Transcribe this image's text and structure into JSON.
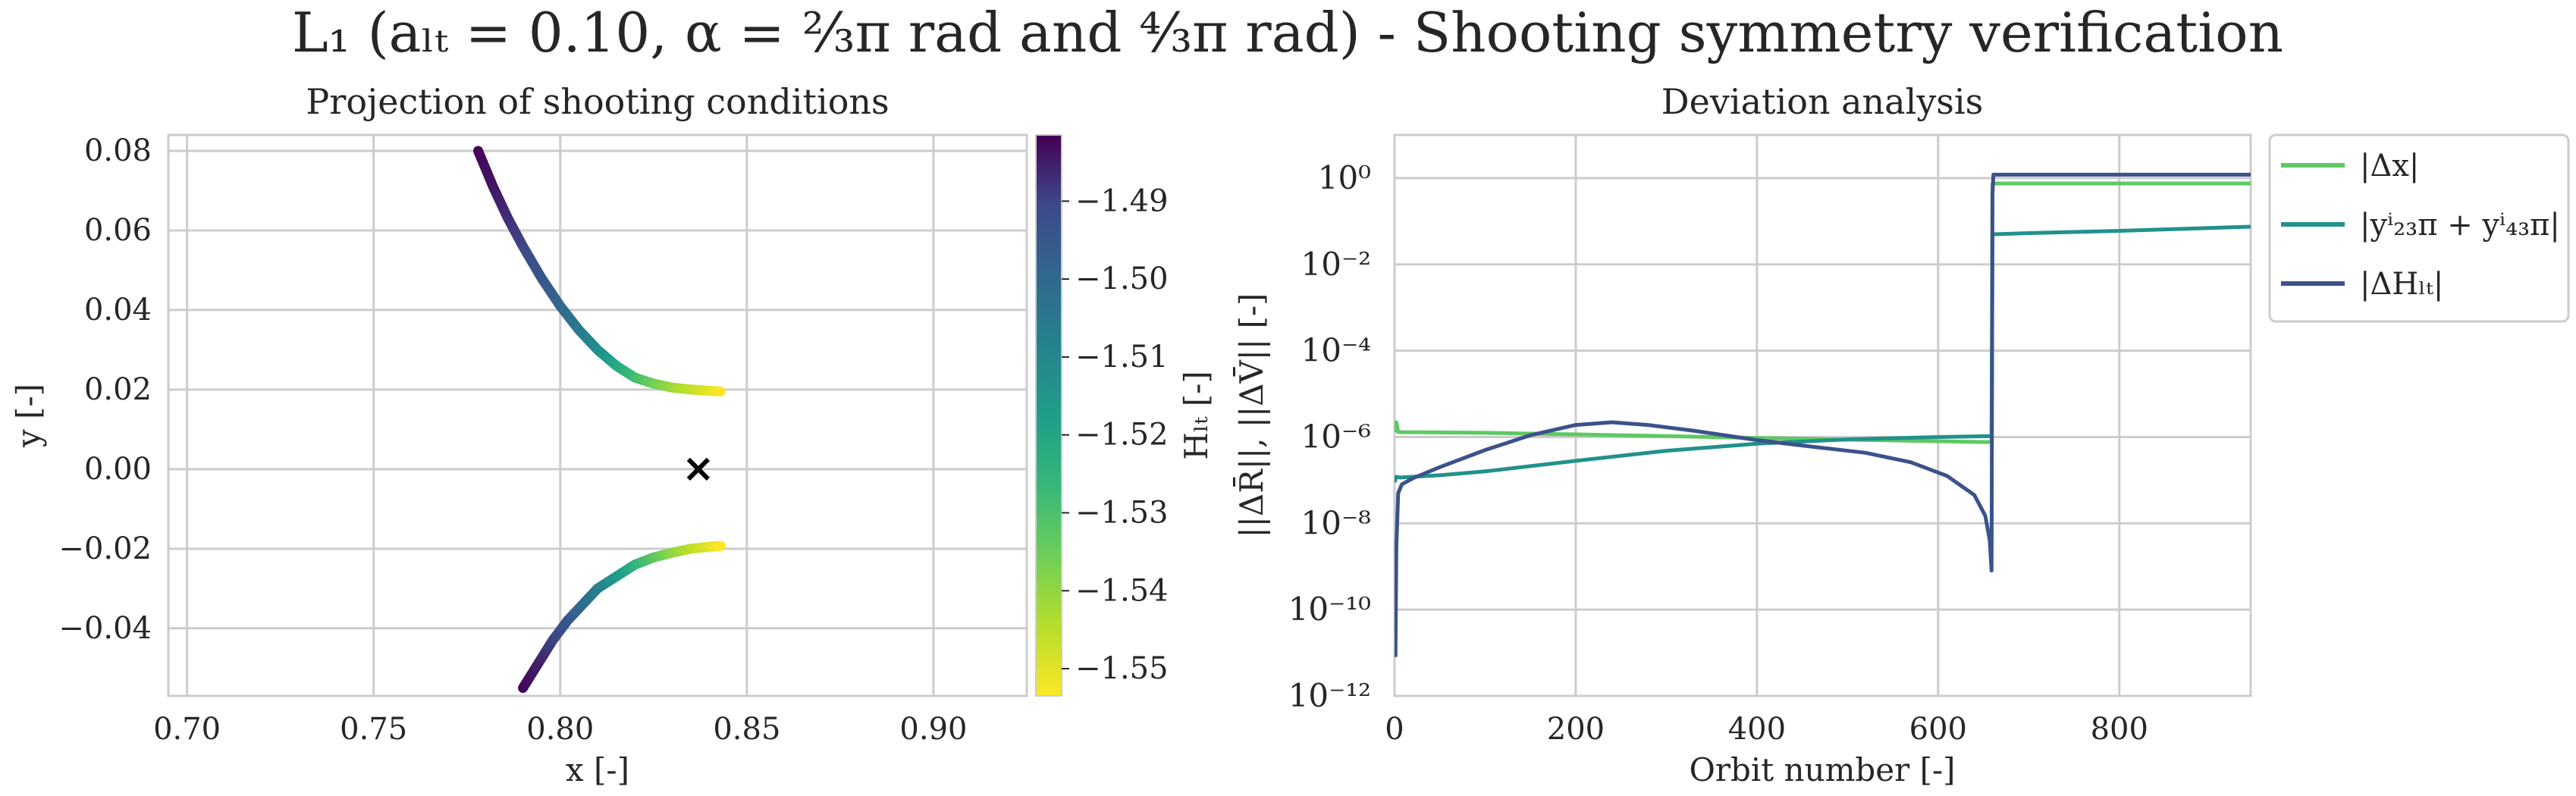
{
  "figure": {
    "title": "L₁ (aₗₜ = 0.10, α = ⅔π rad and ⁴⁄₃π rad) - Shooting symmetry verification"
  },
  "chart_data": [
    {
      "type": "scatter",
      "title": "Projection of shooting conditions",
      "xlabel": "x [-]",
      "ylabel": "y [-]",
      "xlim": [
        0.695,
        0.925
      ],
      "ylim": [
        -0.057,
        0.084
      ],
      "xticks": [
        "0.70",
        "0.75",
        "0.80",
        "0.85",
        "0.90"
      ],
      "yticks": [
        "−0.04",
        "−0.02",
        "0.00",
        "0.02",
        "0.04",
        "0.06",
        "0.08"
      ],
      "grid": true,
      "colorbar": {
        "label": "Hₗₜ [-]",
        "range": [
          -1.5535,
          -1.4815
        ],
        "ticks": [
          "−1.49",
          "−1.50",
          "−1.51",
          "−1.52",
          "−1.53",
          "−1.54",
          "−1.55"
        ],
        "colormap": "viridis_r"
      },
      "series": [
        {
          "x": [
            0.778,
            0.782,
            0.786,
            0.79,
            0.795,
            0.8,
            0.805,
            0.81,
            0.815,
            0.82,
            0.825,
            0.83,
            0.835,
            0.84,
            0.843
          ],
          "y": [
            0.08,
            0.071,
            0.063,
            0.056,
            0.048,
            0.041,
            0.035,
            0.03,
            0.026,
            0.023,
            0.0215,
            0.0205,
            0.02,
            0.0197,
            0.0195
          ],
          "H": [
            -1.482,
            -1.484,
            -1.487,
            -1.49,
            -1.494,
            -1.499,
            -1.505,
            -1.512,
            -1.52,
            -1.528,
            -1.535,
            -1.541,
            -1.546,
            -1.55,
            -1.553
          ]
        },
        {
          "x": [
            0.79,
            0.794,
            0.798,
            0.802,
            0.806,
            0.81,
            0.815,
            0.82,
            0.825,
            0.83,
            0.835,
            0.84,
            0.843
          ],
          "y": [
            -0.055,
            -0.049,
            -0.043,
            -0.038,
            -0.034,
            -0.03,
            -0.027,
            -0.024,
            -0.0222,
            -0.021,
            -0.02,
            -0.0195,
            -0.0193
          ],
          "H": [
            -1.482,
            -1.485,
            -1.489,
            -1.494,
            -1.5,
            -1.507,
            -1.515,
            -1.524,
            -1.532,
            -1.539,
            -1.545,
            -1.55,
            -1.553
          ]
        }
      ],
      "marker": {
        "x": 0.837,
        "y": 0.0,
        "symbol": "x"
      }
    },
    {
      "type": "line",
      "title": "Deviation analysis",
      "xlabel": "Orbit number [-]",
      "ylabel": "||ΔR̄||, ||ΔV̄|| [-]",
      "yscale": "log",
      "xlim": [
        0,
        945
      ],
      "ylim": [
        1e-12,
        10
      ],
      "xticks": [
        0,
        200,
        400,
        600,
        800
      ],
      "yticks": [
        "10⁰",
        "10⁻²",
        "10⁻⁴",
        "10⁻⁶",
        "10⁻⁸",
        "10⁻¹⁰",
        "10⁻¹²"
      ],
      "grid": true,
      "legend_position": "outside-right",
      "series": [
        {
          "name": "|Δx|",
          "color": "#5ec962",
          "x": [
            0,
            2,
            4,
            100,
            200,
            300,
            400,
            500,
            600,
            659,
            660,
            662,
            700,
            800,
            945
          ],
          "y": [
            1.3e-06,
            2.2e-06,
            1.3e-06,
            1.25e-06,
            1.15e-06,
            1.05e-06,
            9.5e-07,
            8.7e-07,
            8e-07,
            7.6e-07,
            0.75,
            0.75,
            0.75,
            0.75,
            0.75
          ]
        },
        {
          "name": "|yⁱ₂₃π + yⁱ₄₃π|",
          "color": "#21918c",
          "x": [
            0,
            2,
            6,
            50,
            100,
            200,
            300,
            400,
            500,
            600,
            659,
            660,
            662,
            700,
            800,
            945
          ],
          "y": [
            9e-08,
            1.2e-07,
            1.15e-07,
            1.3e-07,
            1.6e-07,
            2.8e-07,
            4.8e-07,
            7e-07,
            8.8e-07,
            1e-06,
            1.05e-06,
            0.05,
            0.05,
            0.053,
            0.06,
            0.075
          ]
        },
        {
          "name": "|ΔHₗₜ|",
          "color": "#3b528b",
          "x": [
            1,
            2,
            4,
            8,
            20,
            50,
            100,
            150,
            200,
            240,
            280,
            330,
            400,
            460,
            520,
            570,
            610,
            640,
            652,
            657,
            659,
            660,
            661,
            700,
            800,
            945
          ],
          "y": [
            8e-12,
            3e-09,
            5e-08,
            8e-08,
            1.1e-07,
            2e-07,
            5e-07,
            1.1e-06,
            1.9e-06,
            2.2e-06,
            1.9e-06,
            1.4e-06,
            8.5e-07,
            6e-07,
            4.3e-07,
            2.6e-07,
            1.25e-07,
            4.5e-08,
            1.5e-08,
            4e-09,
            8e-10,
            0.4,
            1.2,
            1.2,
            1.2,
            1.2
          ]
        }
      ]
    }
  ]
}
